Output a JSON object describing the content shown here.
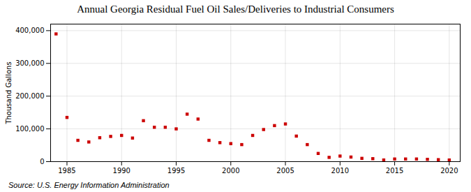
{
  "chart_data": {
    "type": "scatter",
    "title": "Annual Georgia Residual Fuel Oil Sales/Deliveries to Industrial Consumers",
    "ylabel": "Thousand Gallons",
    "source": "Source: U.S. Energy Information Administration",
    "x": [
      1984,
      1985,
      1986,
      1987,
      1988,
      1989,
      1990,
      1991,
      1992,
      1993,
      1994,
      1995,
      1996,
      1997,
      1998,
      1999,
      2000,
      2001,
      2002,
      2003,
      2004,
      2005,
      2006,
      2007,
      2008,
      2009,
      2010,
      2011,
      2012,
      2013,
      2014,
      2015,
      2016,
      2017,
      2018,
      2019,
      2020
    ],
    "values": [
      390000,
      135000,
      65000,
      60000,
      73000,
      77000,
      80000,
      72000,
      125000,
      105000,
      105000,
      100000,
      145000,
      130000,
      65000,
      58000,
      55000,
      52000,
      80000,
      98000,
      110000,
      115000,
      78000,
      52000,
      25000,
      13000,
      17000,
      14000,
      10000,
      9000,
      5000,
      8000,
      8000,
      8000,
      7000,
      6000,
      5000
    ],
    "color": "#cc0000",
    "marker": "square",
    "xlim": [
      1983.5,
      2021
    ],
    "xticks": [
      1985,
      1990,
      1995,
      2000,
      2005,
      2010,
      2015,
      2020
    ],
    "ylim": [
      0,
      420000
    ],
    "yticks": [
      0,
      {
        "value": 100000,
        "label": "100,000"
      },
      {
        "value": 200000,
        "label": "200,000"
      },
      {
        "value": 300000,
        "label": "300,000"
      },
      {
        "value": 400000,
        "label": "400,000"
      }
    ],
    "grid": true
  }
}
